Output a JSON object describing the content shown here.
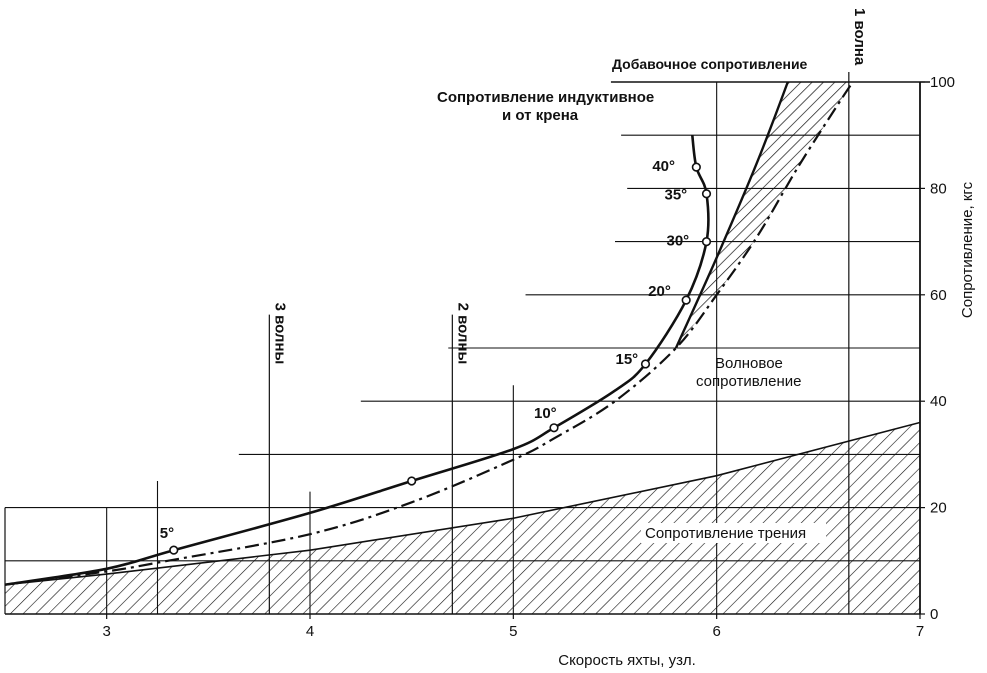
{
  "chart_data": {
    "type": "line",
    "x_axis": {
      "label": "Скорость яхты, узл.",
      "range": [
        2.5,
        7
      ],
      "ticks": [
        "3",
        "4",
        "5",
        "6",
        "7"
      ]
    },
    "y_axis": {
      "label": "Сопротивление, кгс",
      "range": [
        0,
        100
      ],
      "ticks": [
        "0",
        "20",
        "40",
        "60",
        "80",
        "100"
      ],
      "position": "right"
    },
    "grid": "partial horizontal and vertical lines",
    "series": [
      {
        "name": "Сопротивление трения",
        "style": "hatched area",
        "x": [
          2.5,
          3,
          4,
          5,
          6,
          7
        ],
        "y": [
          5.5,
          7.5,
          12,
          18,
          26,
          36
        ]
      },
      {
        "name": "Волновое сопротивление",
        "style": "dash-dot line",
        "x": [
          2.5,
          3,
          3.3,
          4,
          4.5,
          5,
          5.2,
          5.5,
          5.8,
          6.0,
          6.2,
          6.4,
          6.6,
          6.67
        ],
        "y": [
          5.5,
          8,
          10,
          15,
          21,
          29,
          33,
          40,
          50,
          60,
          71,
          84,
          96,
          100
        ]
      },
      {
        "name": "Сопротивление индуктивное и от крена",
        "style": "solid line with heel-angle points",
        "x": [
          2.5,
          3,
          3.33,
          4,
          4.5,
          5,
          5.2,
          5.5,
          5.65,
          5.85,
          5.95,
          5.95,
          5.9,
          5.88
        ],
        "y": [
          5.5,
          8.5,
          12,
          19,
          25,
          31,
          35,
          42,
          47,
          59,
          70,
          79,
          84,
          90
        ],
        "points": [
          {
            "label": "5°",
            "x": 3.33,
            "y": 12
          },
          {
            "label": "10°",
            "x": 5.2,
            "y": 35
          },
          {
            "label": "15°",
            "x": 5.65,
            "y": 47
          },
          {
            "label": "20°",
            "x": 5.85,
            "y": 59
          },
          {
            "label": "30°",
            "x": 5.95,
            "y": 70
          },
          {
            "label": "35°",
            "x": 5.95,
            "y": 79
          },
          {
            "label": "40°",
            "x": 5.9,
            "y": 84
          }
        ]
      },
      {
        "name": "Добавочное сопротивление",
        "style": "solid upper boundary of hatched band",
        "x": [
          5.8,
          6.0,
          6.2,
          6.35
        ],
        "y": [
          50,
          67,
          85,
          100
        ]
      }
    ],
    "wave_markers": [
      {
        "label": "3 волны",
        "x": 3.8
      },
      {
        "label": "2 волны",
        "x": 4.7
      },
      {
        "label": "1 волна",
        "x": 6.65
      }
    ],
    "annotations": [
      "Добавочное сопротивление",
      "Сопротивление индуктивное",
      "и от крена",
      "Волновое",
      "сопротивление",
      "Сопротивление трения"
    ]
  }
}
